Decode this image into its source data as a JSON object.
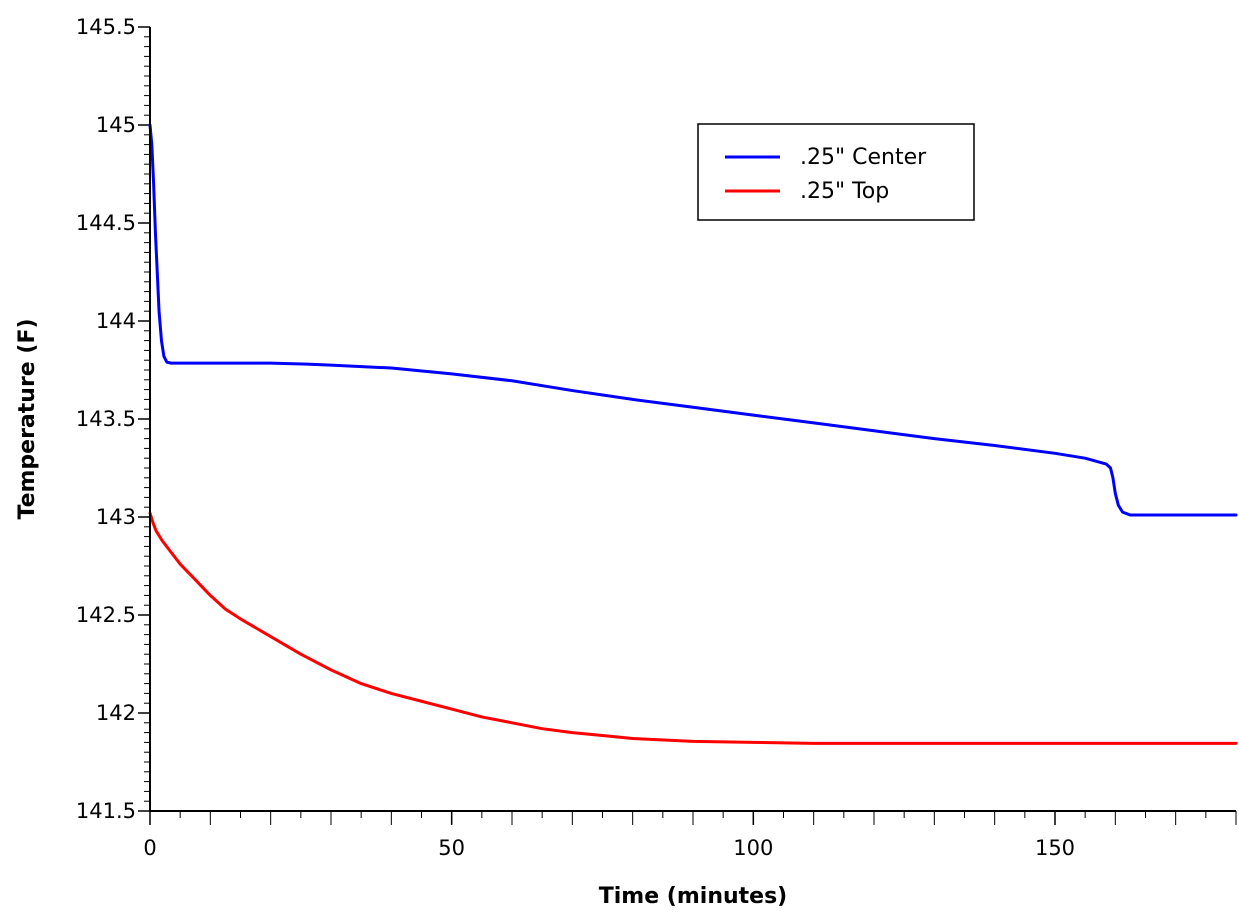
{
  "chart_data": {
    "type": "line",
    "title": "",
    "xlabel": "Time (minutes)",
    "ylabel": "Temperature (F)",
    "xlim": [
      0,
      180
    ],
    "ylim": [
      141.5,
      145.5
    ],
    "x_ticks": [
      0,
      50,
      100,
      150
    ],
    "x_tick_labels": [
      "0",
      "50",
      "100",
      "150"
    ],
    "x_minor_step": 5,
    "y_ticks": [
      141.5,
      142,
      142.5,
      143,
      143.5,
      144,
      144.5,
      145,
      145.5
    ],
    "y_tick_labels": [
      "141.5",
      "142",
      "142.5",
      "143",
      "143.5",
      "144",
      "144.5",
      "145",
      "145.5"
    ],
    "y_minor_step": 0.05,
    "grid": false,
    "legend_position": "top-right",
    "series": [
      {
        "name": ".25\" Center",
        "color": "#0000ff",
        "points": [
          [
            0,
            145.0
          ],
          [
            0.3,
            144.9
          ],
          [
            0.6,
            144.7
          ],
          [
            0.9,
            144.45
          ],
          [
            1.2,
            144.25
          ],
          [
            1.5,
            144.05
          ],
          [
            1.9,
            143.9
          ],
          [
            2.3,
            143.82
          ],
          [
            2.8,
            143.79
          ],
          [
            3.5,
            143.785
          ],
          [
            10,
            143.785
          ],
          [
            20,
            143.785
          ],
          [
            26,
            143.78
          ],
          [
            30,
            143.775
          ],
          [
            40,
            143.76
          ],
          [
            50,
            143.73
          ],
          [
            60,
            143.695
          ],
          [
            70,
            143.645
          ],
          [
            80,
            143.6
          ],
          [
            90,
            143.56
          ],
          [
            100,
            143.52
          ],
          [
            110,
            143.48
          ],
          [
            120,
            143.44
          ],
          [
            130,
            143.4
          ],
          [
            140,
            143.365
          ],
          [
            150,
            143.325
          ],
          [
            155,
            143.3
          ],
          [
            158.5,
            143.27
          ],
          [
            159.2,
            143.25
          ],
          [
            159.6,
            143.2
          ],
          [
            160,
            143.12
          ],
          [
            160.5,
            143.06
          ],
          [
            161.2,
            143.025
          ],
          [
            162.5,
            143.01
          ],
          [
            170,
            143.01
          ],
          [
            180,
            143.01
          ]
        ]
      },
      {
        "name": ".25\" Top",
        "color": "#ff0000",
        "points": [
          [
            0,
            143.02
          ],
          [
            0.5,
            142.97
          ],
          [
            1,
            142.93
          ],
          [
            2,
            142.88
          ],
          [
            3,
            142.84
          ],
          [
            5,
            142.76
          ],
          [
            7.5,
            142.68
          ],
          [
            10,
            142.6
          ],
          [
            12.5,
            142.53
          ],
          [
            15,
            142.48
          ],
          [
            20,
            142.39
          ],
          [
            25,
            142.3
          ],
          [
            30,
            142.22
          ],
          [
            35,
            142.15
          ],
          [
            40,
            142.1
          ],
          [
            45,
            142.06
          ],
          [
            50,
            142.02
          ],
          [
            55,
            141.98
          ],
          [
            60,
            141.95
          ],
          [
            65,
            141.92
          ],
          [
            70,
            141.9
          ],
          [
            75,
            141.885
          ],
          [
            80,
            141.87
          ],
          [
            90,
            141.855
          ],
          [
            100,
            141.85
          ],
          [
            110,
            141.845
          ],
          [
            120,
            141.845
          ],
          [
            140,
            141.845
          ],
          [
            160,
            141.845
          ],
          [
            180,
            141.845
          ]
        ]
      }
    ]
  }
}
